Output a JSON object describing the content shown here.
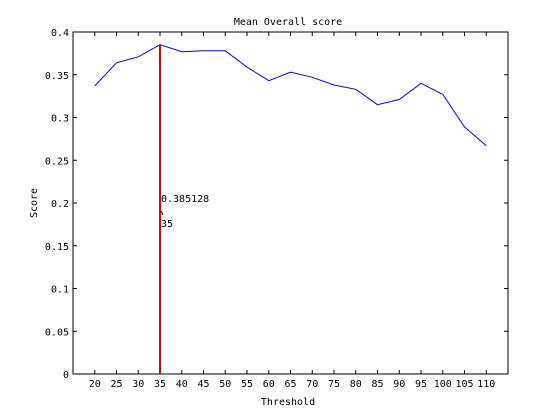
{
  "chart_data": {
    "type": "line",
    "title": "Mean Overall score",
    "xlabel": "Threshold",
    "ylabel": "Score",
    "x": [
      20,
      25,
      30,
      35,
      40,
      45,
      50,
      55,
      60,
      65,
      70,
      75,
      80,
      85,
      90,
      95,
      100,
      105,
      110
    ],
    "series": [
      {
        "values": [
          0.337,
          0.364,
          0.371,
          0.385128,
          0.377,
          0.378,
          0.378,
          0.359,
          0.343,
          0.353,
          0.347,
          0.338,
          0.333,
          0.315,
          0.321,
          0.34,
          0.327,
          0.289,
          0.267
        ],
        "color": "#0000ff"
      }
    ],
    "xlim": [
      15,
      115
    ],
    "ylim": [
      0,
      0.4
    ],
    "xticks": [
      "20",
      "25",
      "30",
      "35",
      "40",
      "45",
      "50",
      "55",
      "60",
      "65",
      "70",
      "75",
      "80",
      "85",
      "90",
      "95",
      "100",
      "105",
      "110"
    ],
    "yticks": [
      "0",
      "0.05",
      "0.1",
      "0.15",
      "0.2",
      "0.25",
      "0.3",
      "0.35",
      "0.4"
    ],
    "marker_line": {
      "x": 35,
      "color": "#e00000"
    },
    "annotation": {
      "value_label": "0.385128",
      "x_label": "35"
    },
    "grid": false,
    "legend": "none"
  }
}
